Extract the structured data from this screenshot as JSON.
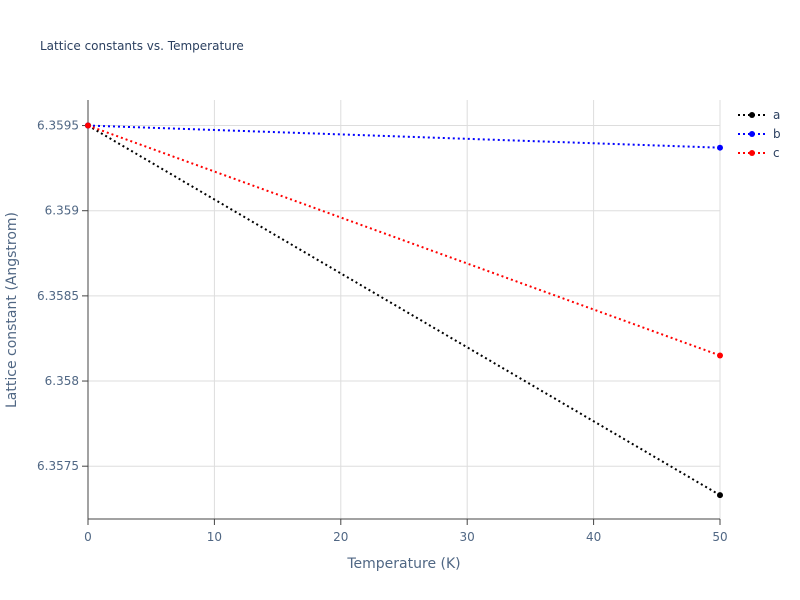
{
  "chart_data": {
    "type": "line",
    "title": "Lattice constants vs. Temperature",
    "x_label": "Temperature (K)",
    "y_label": "Lattice constant (Angstrom)",
    "x": [
      0,
      50
    ],
    "series": [
      {
        "name": "a",
        "color": "#000000",
        "values": [
          6.3595,
          6.35733
        ]
      },
      {
        "name": "b",
        "color": "#0000ff",
        "values": [
          6.3595,
          6.35937
        ]
      },
      {
        "name": "c",
        "color": "#ff0000",
        "values": [
          6.3595,
          6.35815
        ]
      }
    ],
    "xlim": [
      0,
      50
    ],
    "xticks": [
      0,
      10,
      20,
      30,
      40,
      50
    ],
    "ylim": [
      6.35719,
      6.35965
    ],
    "yticks": [
      6.3575,
      6.358,
      6.3585,
      6.359,
      6.3595
    ],
    "grid": true,
    "legend": "top-right",
    "line_style": "dotted"
  }
}
